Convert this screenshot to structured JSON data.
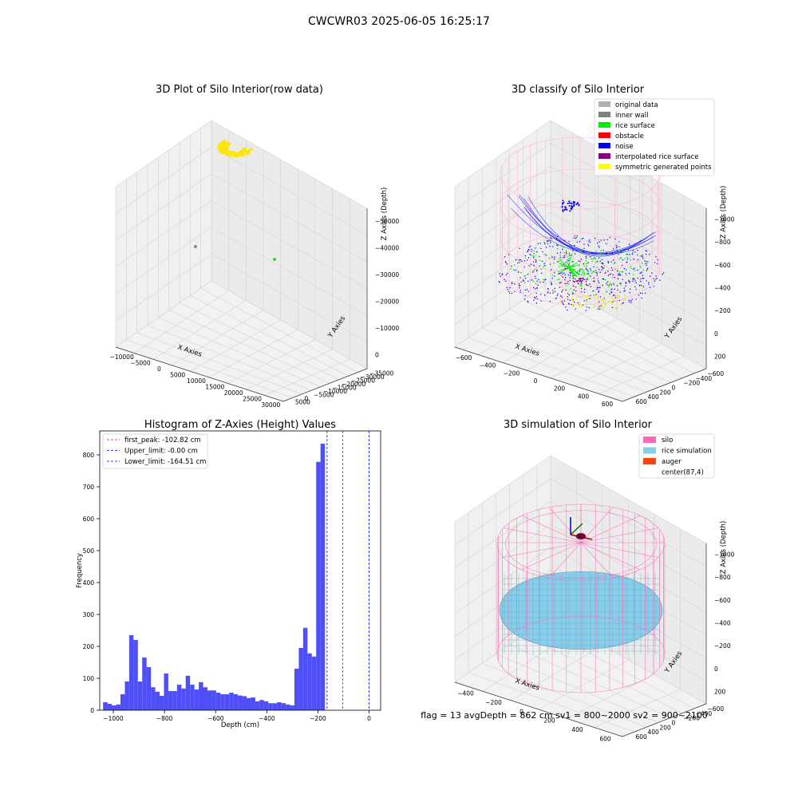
{
  "figure": {
    "suptitle": "CWCWR03 2025-06-05 16:25:17",
    "footer": "flag = 13   avgDepth = 862 cm  sv1 = 800~2000  sv2 = 900~2100"
  },
  "colors": {
    "raw_yellow": "#ffe600",
    "original": "#b0b0b0",
    "inner_wall": "#808080",
    "rice_surface": "#00ee00",
    "obstacle": "#ff0000",
    "noise": "#0000ff",
    "interp": "#800080",
    "symmetric": "#ffff00",
    "silo": "#ff69b4",
    "rice_sim": "#87ceeb",
    "auger": "#ff4500",
    "hist_bar": "#4f4ffa",
    "first_peak_line": "#ff0000",
    "limit_line": "#0000ff"
  },
  "chart_data": [
    {
      "type": "scatter",
      "subtype": "3d",
      "title": "3D Plot of Silo Interior(row data)",
      "xlabel": "X Axies",
      "ylabel": "Y Axies",
      "zlabel": "Z Axies (Depth)",
      "x_ticks": [
        "−10000",
        "−5000",
        "0",
        "5000",
        "10000",
        "15000",
        "20000",
        "25000",
        "30000"
      ],
      "y_ticks": [
        "5000",
        "0",
        "−5000",
        "−10000",
        "−15000",
        "−20000",
        "−25000",
        "−30000",
        "−35000"
      ],
      "z_ticks": [
        "0",
        "−10000",
        "−20000",
        "−30000",
        "−40000",
        "−50000"
      ]
    },
    {
      "type": "scatter",
      "subtype": "3d",
      "title": "3D classify of Silo Interior",
      "xlabel": "X Axies",
      "ylabel": "Y Axies",
      "zlabel": "Z Axies (Depth)",
      "x_ticks": [
        "−600",
        "−400",
        "−200",
        "0",
        "200",
        "400",
        "600"
      ],
      "y_ticks": [
        "600",
        "400",
        "200",
        "0",
        "−200",
        "−400",
        "−600"
      ],
      "z_ticks": [
        "200",
        "0",
        "−200",
        "−400",
        "−600",
        "−800",
        "−1000"
      ],
      "legend": [
        {
          "label": "original data",
          "color": "#b0b0b0"
        },
        {
          "label": "inner wall",
          "color": "#808080"
        },
        {
          "label": "rice surface",
          "color": "#00ee00"
        },
        {
          "label": "obstacle",
          "color": "#ff0000"
        },
        {
          "label": "noise",
          "color": "#0000ff"
        },
        {
          "label": "interpolated rice surface",
          "color": "#800080"
        },
        {
          "label": "symmetric generated points",
          "color": "#ffff00"
        }
      ]
    },
    {
      "type": "bar",
      "subtype": "histogram",
      "title": "Histogram of Z-Axies (Height) Values",
      "xlabel": "Depth (cm)",
      "ylabel": "Frequency",
      "xlim": [
        -1053,
        45
      ],
      "ylim": [
        0,
        875
      ],
      "x_ticks": [
        -1000,
        -800,
        -600,
        -400,
        -200,
        0
      ],
      "x_tick_labels": [
        "−1000",
        "−800",
        "−600",
        "−400",
        "−200",
        "0"
      ],
      "y_ticks": [
        0,
        100,
        200,
        300,
        400,
        500,
        600,
        700,
        800
      ],
      "bin_start": -1040,
      "bin_width": 17,
      "values": [
        25,
        20,
        15,
        18,
        50,
        90,
        235,
        220,
        90,
        165,
        135,
        72,
        58,
        45,
        115,
        60,
        60,
        80,
        68,
        108,
        80,
        65,
        88,
        72,
        62,
        62,
        55,
        50,
        50,
        55,
        50,
        46,
        44,
        38,
        40,
        28,
        32,
        28,
        22,
        22,
        25,
        22,
        18,
        15,
        130,
        195,
        258,
        178,
        168,
        778,
        835
      ],
      "vlines": [
        {
          "label": "first_peak: -102.82 cm",
          "x": -102.82,
          "color": "#ff0000"
        },
        {
          "label": "Upper_limit: -0.00 cm",
          "x": 0.0,
          "color": "#0000ff"
        },
        {
          "label": "Lower_limit: -164.51 cm",
          "x": -164.51,
          "color": "#0000ff"
        }
      ],
      "legend_position": "top-left",
      "grid": false
    },
    {
      "type": "surface",
      "subtype": "3d",
      "title": "3D simulation of Silo Interior",
      "xlabel": "X Axies",
      "ylabel": "Y Axies",
      "zlabel": "Z Axies (Depth)",
      "x_ticks": [
        "−400",
        "−200",
        "0",
        "200",
        "400",
        "600"
      ],
      "y_ticks": [
        "600",
        "400",
        "200",
        "0",
        "−200",
        "−400",
        "−600"
      ],
      "z_ticks": [
        "200",
        "0",
        "−200",
        "−400",
        "−600",
        "−800",
        "−1000"
      ],
      "legend": [
        {
          "label": "silo",
          "color": "#ff69b4"
        },
        {
          "label": "rice simulation",
          "color": "#87ceeb"
        },
        {
          "label": "auger",
          "color": "#ff4500"
        },
        {
          "label": "center(87,4)",
          "color": ""
        }
      ]
    }
  ]
}
